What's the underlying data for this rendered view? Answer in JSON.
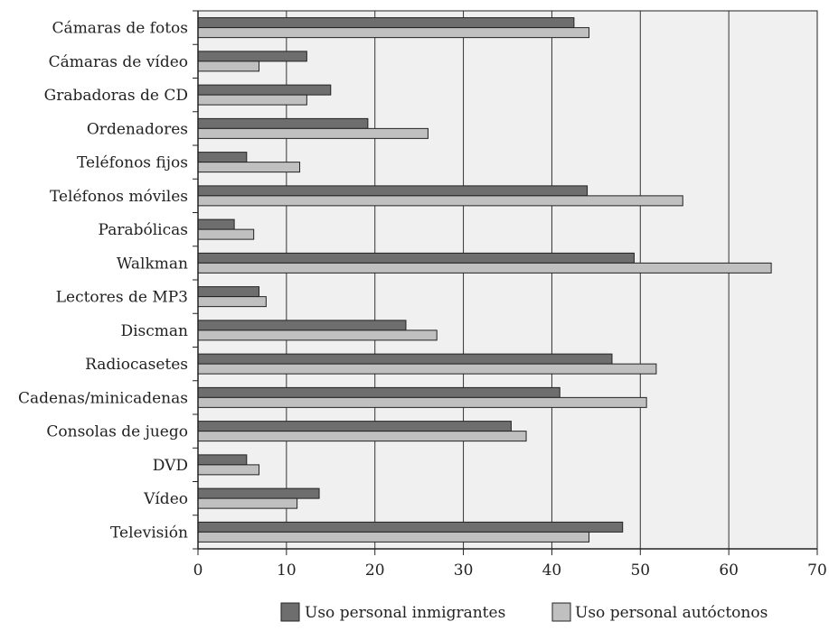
{
  "colors": {
    "plot_background": "#f0f0f0",
    "inmigrantes": "#6e6e6e",
    "autoctonos": "#c0c0c0",
    "outline": "#222222",
    "grid": "#333333"
  },
  "chart_data": {
    "type": "bar",
    "orientation": "horizontal",
    "categories": [
      "Cámaras de fotos",
      "Cámaras de vídeo",
      "Grabadoras de CD",
      "Ordenadores",
      "Teléfonos fijos",
      "Teléfonos móviles",
      "Parabólicas",
      "Walkman",
      "Lectores de MP3",
      "Discman",
      "Radiocasetes",
      "Cadenas/minicadenas",
      "Consolas de juego",
      "DVD",
      "Vídeo",
      "Televisión"
    ],
    "series": [
      {
        "name": "Uso personal inmigrantes",
        "values": [
          42.5,
          12.3,
          15.0,
          19.2,
          5.5,
          44.0,
          4.1,
          49.3,
          6.9,
          23.5,
          46.8,
          40.9,
          35.4,
          5.5,
          13.7,
          48.0
        ]
      },
      {
        "name": "Uso personal autóctonos",
        "values": [
          44.2,
          6.9,
          12.3,
          26.0,
          11.5,
          54.8,
          6.3,
          64.8,
          7.7,
          27.0,
          51.8,
          50.7,
          37.1,
          6.9,
          11.2,
          44.2
        ]
      }
    ],
    "xlim": [
      0,
      70
    ],
    "xticks": [
      "0",
      "10",
      "20",
      "30",
      "40",
      "50",
      "60",
      "70"
    ],
    "grid": "vertical",
    "legend_position": "bottom-right"
  }
}
